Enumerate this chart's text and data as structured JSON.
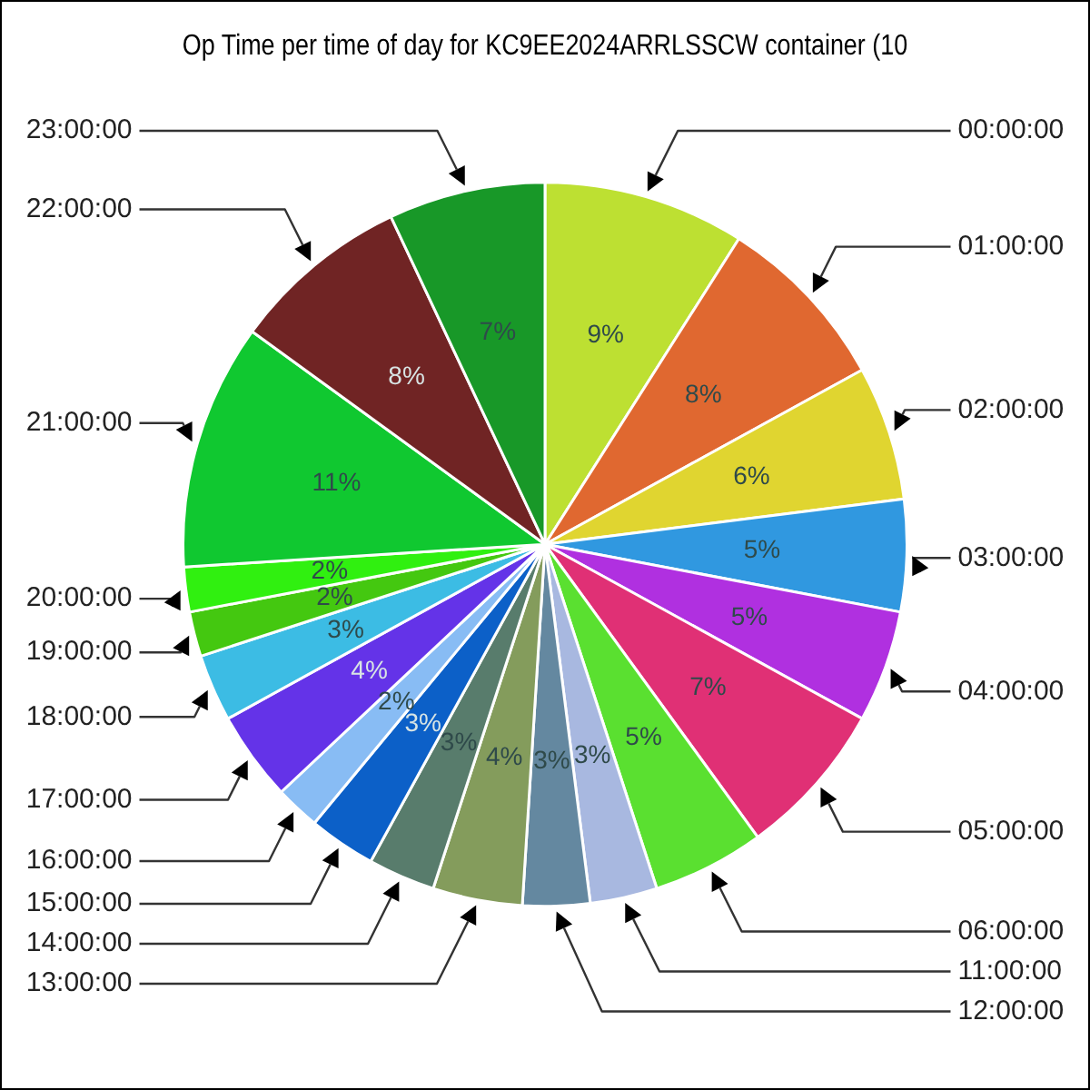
{
  "chart_data": {
    "type": "pie",
    "title": "Op Time per time of day for KC9EE2024ARRLSSCW container (10",
    "categories": [
      "00:00:00",
      "01:00:00",
      "02:00:00",
      "03:00:00",
      "04:00:00",
      "05:00:00",
      "06:00:00",
      "11:00:00",
      "12:00:00",
      "13:00:00",
      "14:00:00",
      "15:00:00",
      "16:00:00",
      "17:00:00",
      "18:00:00",
      "19:00:00",
      "20:00:00",
      "21:00:00",
      "22:00:00",
      "23:00:00"
    ],
    "values": [
      9,
      8,
      6,
      5,
      5,
      7,
      5,
      3,
      3,
      4,
      3,
      3,
      2,
      4,
      3,
      2,
      2,
      11,
      8,
      7
    ],
    "colors": [
      "#bde032",
      "#e06830",
      "#e0d530",
      "#3098e0",
      "#b030e0",
      "#e03075",
      "#5ae030",
      "#a8b8e0",
      "#6488a0",
      "#849c5c",
      "#587c6c",
      "#0c60c8",
      "#88bcf4",
      "#6433e8",
      "#3cbce4",
      "#44c810",
      "#30f010",
      "#10c830",
      "#702424",
      "#189828"
    ],
    "value_labels": [
      "9%",
      "8%",
      "6%",
      "5%",
      "5%",
      "7%",
      "5%",
      "3%",
      "3%",
      "4%",
      "3%",
      "3%",
      "2%",
      "4%",
      "3%",
      "2%",
      "2%",
      "11%",
      "8%",
      "7%"
    ],
    "legend": false
  }
}
